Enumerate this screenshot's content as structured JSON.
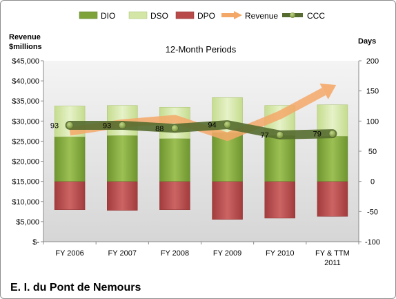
{
  "chart_data": {
    "type": "bar",
    "subtitle": "12-Month Periods",
    "company": "E. I. du Pont de Nemours",
    "y_left": {
      "title_line1": "Revenue",
      "title_line2": "$millions",
      "min": 0,
      "max": 45000,
      "step": 5000,
      "tick_labels": [
        "$-",
        "$5,000",
        "$10,000",
        "$15,000",
        "$20,000",
        "$25,000",
        "$30,000",
        "$35,000",
        "$40,000",
        "$45,000"
      ]
    },
    "y_right": {
      "title": "Days",
      "min": -100,
      "max": 200,
      "step": 50,
      "tick_labels": [
        "-100",
        "-50",
        "0",
        "50",
        "100",
        "150",
        "200"
      ]
    },
    "categories": [
      {
        "line1": "FY 2006",
        "line2": ""
      },
      {
        "line1": "FY 2007",
        "line2": ""
      },
      {
        "line1": "FY 2008",
        "line2": ""
      },
      {
        "line1": "FY 2009",
        "line2": ""
      },
      {
        "line1": "FY 2010",
        "line2": ""
      },
      {
        "line1": "FY & TTM",
        "line2": "2011"
      }
    ],
    "series": [
      {
        "name": "DIO",
        "kind": "bar-days",
        "values": [
          74,
          76,
          71,
          81,
          76,
          75
        ],
        "color": "#7ea33a"
      },
      {
        "name": "DSO",
        "kind": "bar-days",
        "values": [
          51,
          50,
          52,
          58,
          50,
          52
        ],
        "color": "#d3e6a6"
      },
      {
        "name": "DPO",
        "kind": "bar-days",
        "values": [
          -47,
          -48,
          -47,
          -63,
          -61,
          -58
        ],
        "color": "#b84a4a"
      },
      {
        "name": "Revenue",
        "kind": "line-money",
        "values": [
          27400,
          29400,
          30500,
          26100,
          31500,
          38500
        ],
        "color": "#f4a868"
      },
      {
        "name": "CCC",
        "kind": "line-days",
        "values": [
          93,
          93,
          88,
          94,
          77,
          79
        ],
        "color": "#556b2f"
      }
    ],
    "ccc_labels": [
      "93",
      "93",
      "88",
      "94",
      "77",
      "79"
    ],
    "legend_position": "top",
    "grid": false
  }
}
